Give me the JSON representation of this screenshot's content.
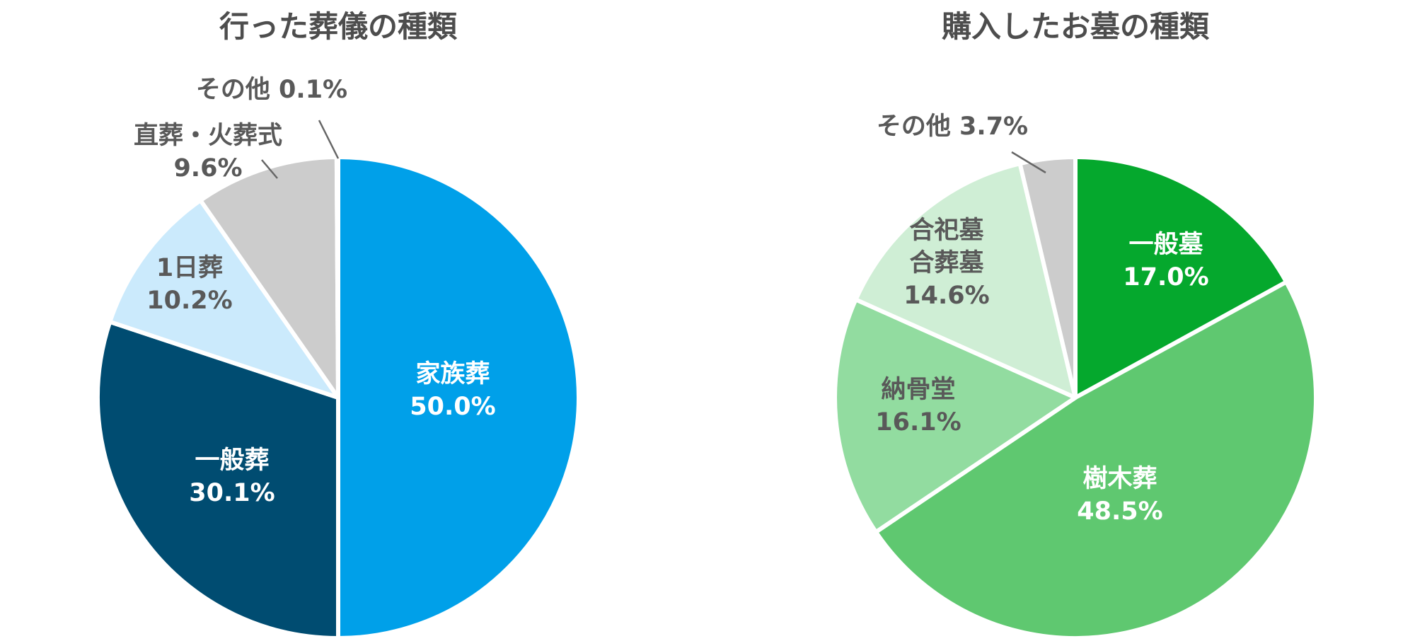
{
  "chart_data": [
    {
      "type": "pie",
      "title": "行った葬儀の種類",
      "slices": [
        {
          "label": [
            "家族葬"
          ],
          "value": 50.0,
          "value_label": "50.0%",
          "color": "#00a0e9",
          "text_color": "#ffffff"
        },
        {
          "label": [
            "一般葬"
          ],
          "value": 30.1,
          "value_label": "30.1%",
          "color": "#004c71",
          "text_color": "#ffffff"
        },
        {
          "label": [
            "1日葬"
          ],
          "value": 10.2,
          "value_label": "10.2%",
          "color": "#cbeafc",
          "text_color": "#595959"
        },
        {
          "label": [
            "直葬・火葬式"
          ],
          "value": 9.6,
          "value_label": "9.6%",
          "color": "#cccccc",
          "text_color": "#595959"
        },
        {
          "label": [
            "その他"
          ],
          "value": 0.1,
          "value_label": "0.1%",
          "color": "#d9d9d9",
          "text_color": "#595959"
        }
      ]
    },
    {
      "type": "pie",
      "title": "購入したお墓の種類",
      "slices": [
        {
          "label": [
            "一般墓"
          ],
          "value": 17.0,
          "value_label": "17.0%",
          "color": "#05a82d",
          "text_color": "#ffffff"
        },
        {
          "label": [
            "樹木葬"
          ],
          "value": 48.5,
          "value_label": "48.5%",
          "color": "#5fc870",
          "text_color": "#ffffff"
        },
        {
          "label": [
            "納骨堂"
          ],
          "value": 16.1,
          "value_label": "16.1%",
          "color": "#92dca0",
          "text_color": "#595959"
        },
        {
          "label": [
            "合祀墓",
            "合葬墓"
          ],
          "value": 14.6,
          "value_label": "14.6%",
          "color": "#cfeed5",
          "text_color": "#595959"
        },
        {
          "label": [
            "その他"
          ],
          "value": 3.7,
          "value_label": "3.7%",
          "color": "#cccccc",
          "text_color": "#595959"
        }
      ]
    }
  ]
}
